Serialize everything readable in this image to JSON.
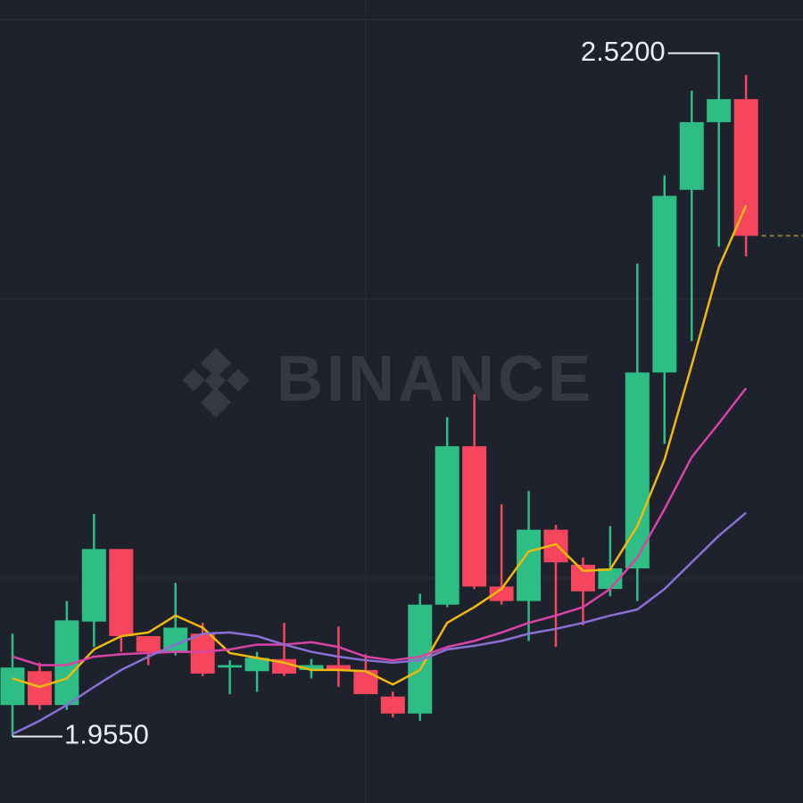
{
  "chart_data": {
    "type": "candlestick",
    "watermark": "BINANCE",
    "ylim": [
      1.9,
      2.564
    ],
    "up_color": "#2ebd85",
    "down_color": "#f6465d",
    "candles": [
      {
        "open": 1.981,
        "high": 2.04,
        "low": 1.955,
        "close": 2.012
      },
      {
        "open": 2.009,
        "high": 2.016,
        "low": 1.977,
        "close": 1.981
      },
      {
        "open": 1.981,
        "high": 2.067,
        "low": 1.977,
        "close": 2.051
      },
      {
        "open": 2.05,
        "high": 2.139,
        "low": 2.029,
        "close": 2.11
      },
      {
        "open": 2.11,
        "high": 2.11,
        "low": 2.025,
        "close": 2.038
      },
      {
        "open": 2.038,
        "high": 2.038,
        "low": 2.014,
        "close": 2.025
      },
      {
        "open": 2.025,
        "high": 2.082,
        "low": 2.022,
        "close": 2.045
      },
      {
        "open": 2.04,
        "high": 2.049,
        "low": 2.005,
        "close": 2.007
      },
      {
        "open": 2.012,
        "high": 2.018,
        "low": 1.99,
        "close": 2.014
      },
      {
        "open": 2.009,
        "high": 2.025,
        "low": 1.992,
        "close": 2.02
      },
      {
        "open": 2.019,
        "high": 2.049,
        "low": 2.005,
        "close": 2.007
      },
      {
        "open": 2.01,
        "high": 2.019,
        "low": 2.003,
        "close": 2.014
      },
      {
        "open": 2.014,
        "high": 2.046,
        "low": 1.996,
        "close": 2.01
      },
      {
        "open": 2.01,
        "high": 2.023,
        "low": 1.99,
        "close": 1.99
      },
      {
        "open": 1.988,
        "high": 1.992,
        "low": 1.971,
        "close": 1.974
      },
      {
        "open": 1.974,
        "high": 2.073,
        "low": 1.968,
        "close": 2.064
      },
      {
        "open": 2.064,
        "high": 2.219,
        "low": 2.062,
        "close": 2.195
      },
      {
        "open": 2.195,
        "high": 2.238,
        "low": 2.077,
        "close": 2.079
      },
      {
        "open": 2.079,
        "high": 2.147,
        "low": 2.064,
        "close": 2.067
      },
      {
        "open": 2.067,
        "high": 2.158,
        "low": 2.034,
        "close": 2.126
      },
      {
        "open": 2.126,
        "high": 2.13,
        "low": 2.029,
        "close": 2.099
      },
      {
        "open": 2.097,
        "high": 2.103,
        "low": 2.047,
        "close": 2.075
      },
      {
        "open": 2.077,
        "high": 2.129,
        "low": 2.071,
        "close": 2.094
      },
      {
        "open": 2.094,
        "high": 2.346,
        "low": 2.067,
        "close": 2.256
      },
      {
        "open": 2.256,
        "high": 2.419,
        "low": 2.197,
        "close": 2.402
      },
      {
        "open": 2.407,
        "high": 2.489,
        "low": 2.282,
        "close": 2.463
      },
      {
        "open": 2.463,
        "high": 2.52,
        "low": 2.36,
        "close": 2.482
      },
      {
        "open": 2.482,
        "high": 2.502,
        "low": 2.352,
        "close": 2.369
      }
    ],
    "ma_lines": [
      {
        "color": "#f0b90b",
        "values": [
          2.003,
          1.996,
          2.003,
          2.027,
          2.038,
          2.041,
          2.055,
          2.045,
          2.024,
          2.02,
          2.016,
          2.01,
          2.01,
          2.009,
          1.998,
          2.01,
          2.049,
          2.062,
          2.077,
          2.108,
          2.114,
          2.092,
          2.093,
          2.129,
          2.184,
          2.262,
          2.343,
          2.394
        ]
      },
      {
        "color": "#d943a8",
        "values": [
          2.021,
          2.014,
          2.014,
          2.021,
          2.023,
          2.024,
          2.025,
          2.025,
          2.027,
          2.031,
          2.031,
          2.033,
          2.029,
          2.021,
          2.018,
          2.021,
          2.029,
          2.034,
          2.041,
          2.049,
          2.055,
          2.062,
          2.077,
          2.103,
          2.143,
          2.186,
          2.214,
          2.243
        ]
      },
      {
        "color": "#8b6fd6",
        "values": [
          1.957,
          1.968,
          1.981,
          1.996,
          2.01,
          2.021,
          2.031,
          2.04,
          2.041,
          2.038,
          2.031,
          2.025,
          2.021,
          2.018,
          2.016,
          2.018,
          2.027,
          2.03,
          2.034,
          2.04,
          2.044,
          2.049,
          2.055,
          2.06,
          2.077,
          2.099,
          2.121,
          2.14
        ]
      }
    ],
    "annotations": [
      {
        "label": "2.5200",
        "value": 2.52
      },
      {
        "label": "1.9550",
        "value": 1.955
      }
    ]
  }
}
